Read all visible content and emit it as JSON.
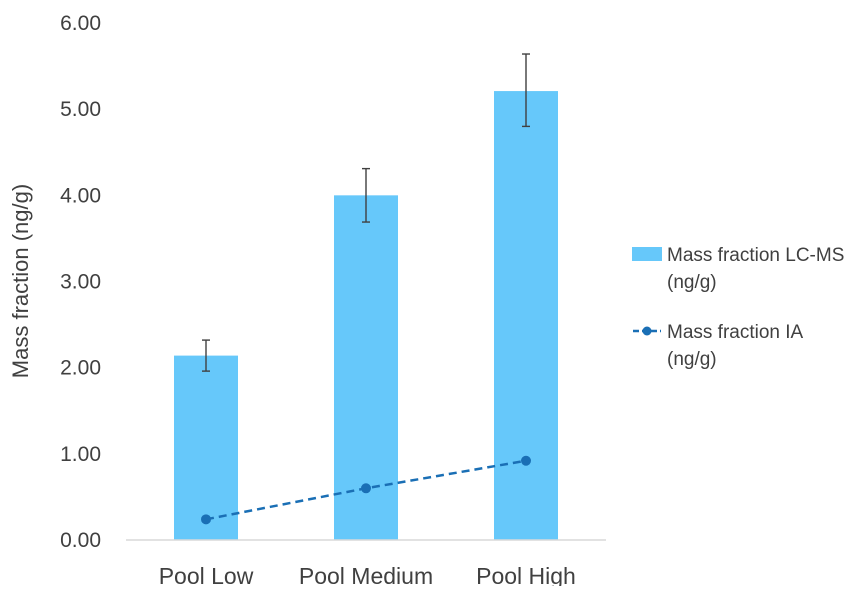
{
  "chart_data": {
    "type": "bar",
    "categories": [
      "Pool Low",
      "Pool Medium",
      "Pool High"
    ],
    "ylabel": "Mass fraction (ng/g)",
    "xlabel": "",
    "ylim": [
      0,
      6
    ],
    "yticks": [
      "0.00",
      "1.00",
      "2.00",
      "3.00",
      "4.00",
      "5.00",
      "6.00"
    ],
    "grid": false,
    "legend_position": "right",
    "series": [
      {
        "name": "Mass fraction LC-MS (ng/g)",
        "legend_lines": [
          "Mass fraction LC-MS",
          "(ng/g)"
        ],
        "kind": "bar",
        "color": "#66C8FA",
        "values": [
          2.14,
          4.0,
          5.21
        ],
        "error_low": [
          1.96,
          3.69,
          4.8
        ],
        "error_high": [
          2.32,
          4.31,
          5.64
        ]
      },
      {
        "name": "Mass fraction IA (ng/g)",
        "legend_lines": [
          "Mass fraction IA",
          "(ng/g)"
        ],
        "kind": "line",
        "line_style": "dashed",
        "marker": "circle",
        "color": "#1A6FB5",
        "values": [
          0.24,
          0.6,
          0.92
        ]
      }
    ]
  }
}
